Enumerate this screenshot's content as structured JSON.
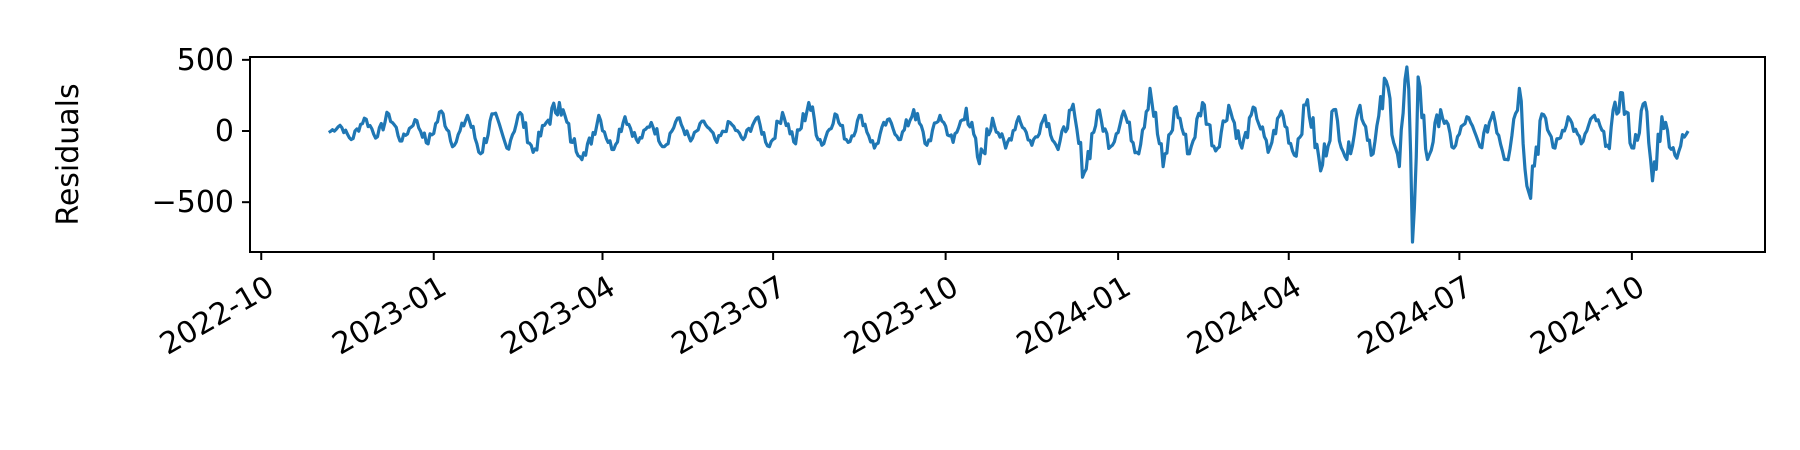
{
  "chart_data": {
    "type": "line",
    "title": "",
    "xlabel": "",
    "ylabel": "Residuals",
    "xlim": [
      "2022-09-25",
      "2024-12-11"
    ],
    "ylim": [
      -850,
      520
    ],
    "x_ticks": [
      "2022-10",
      "2023-01",
      "2023-04",
      "2023-07",
      "2023-10",
      "2024-01",
      "2024-04",
      "2024-07",
      "2024-10"
    ],
    "y_ticks": [
      500,
      0,
      -500
    ],
    "y_tick_labels": [
      "500",
      "0",
      "−500"
    ],
    "grid": false,
    "legend": "none",
    "series": [
      {
        "color": "#1f77b4",
        "x_start": "2022-11-06",
        "x_end": "2024-10-31",
        "points": [
          [
            "2022-11-06",
            -10
          ],
          [
            "2022-11-12",
            40
          ],
          [
            "2022-11-18",
            -60
          ],
          [
            "2022-11-25",
            90
          ],
          [
            "2022-12-02",
            -40
          ],
          [
            "2022-12-08",
            120
          ],
          [
            "2022-12-15",
            -70
          ],
          [
            "2022-12-22",
            80
          ],
          [
            "2022-12-29",
            -90
          ],
          [
            "2023-01-05",
            140
          ],
          [
            "2023-01-12",
            -100
          ],
          [
            "2023-01-19",
            110
          ],
          [
            "2023-01-26",
            -160
          ],
          [
            "2023-02-02",
            120
          ],
          [
            "2023-02-09",
            -120
          ],
          [
            "2023-02-16",
            130
          ],
          [
            "2023-02-23",
            -150
          ],
          [
            "2023-03-02",
            60
          ],
          [
            "2023-03-09",
            200
          ],
          [
            "2023-03-16",
            -80
          ],
          [
            "2023-03-23",
            -170
          ],
          [
            "2023-03-30",
            110
          ],
          [
            "2023-04-06",
            -130
          ],
          [
            "2023-04-13",
            100
          ],
          [
            "2023-04-20",
            -80
          ],
          [
            "2023-04-27",
            60
          ],
          [
            "2023-05-04",
            -110
          ],
          [
            "2023-05-11",
            90
          ],
          [
            "2023-05-18",
            -70
          ],
          [
            "2023-05-25",
            70
          ],
          [
            "2023-06-01",
            -80
          ],
          [
            "2023-06-08",
            60
          ],
          [
            "2023-06-15",
            -60
          ],
          [
            "2023-06-22",
            90
          ],
          [
            "2023-06-29",
            -110
          ],
          [
            "2023-07-06",
            130
          ],
          [
            "2023-07-13",
            -90
          ],
          [
            "2023-07-20",
            200
          ],
          [
            "2023-07-27",
            -100
          ],
          [
            "2023-08-03",
            120
          ],
          [
            "2023-08-10",
            -80
          ],
          [
            "2023-08-17",
            110
          ],
          [
            "2023-08-24",
            -120
          ],
          [
            "2023-08-31",
            80
          ],
          [
            "2023-09-07",
            -60
          ],
          [
            "2023-09-14",
            150
          ],
          [
            "2023-09-21",
            -100
          ],
          [
            "2023-09-28",
            110
          ],
          [
            "2023-10-05",
            -80
          ],
          [
            "2023-10-12",
            160
          ],
          [
            "2023-10-19",
            -230
          ],
          [
            "2023-10-26",
            90
          ],
          [
            "2023-11-02",
            -120
          ],
          [
            "2023-11-09",
            100
          ],
          [
            "2023-11-16",
            -100
          ],
          [
            "2023-11-23",
            110
          ],
          [
            "2023-11-30",
            -130
          ],
          [
            "2023-12-07",
            150
          ],
          [
            "2023-12-14",
            -290
          ],
          [
            "2023-12-21",
            140
          ],
          [
            "2023-12-28",
            -110
          ],
          [
            "2024-01-04",
            140
          ],
          [
            "2024-01-11",
            -150
          ],
          [
            "2024-01-18",
            300
          ],
          [
            "2024-01-25",
            -250
          ],
          [
            "2024-02-01",
            170
          ],
          [
            "2024-02-08",
            -160
          ],
          [
            "2024-02-15",
            200
          ],
          [
            "2024-02-22",
            -140
          ],
          [
            "2024-02-29",
            180
          ],
          [
            "2024-03-07",
            -120
          ],
          [
            "2024-03-14",
            160
          ],
          [
            "2024-03-21",
            -150
          ],
          [
            "2024-03-28",
            140
          ],
          [
            "2024-04-04",
            -170
          ],
          [
            "2024-04-11",
            220
          ],
          [
            "2024-04-18",
            -280
          ],
          [
            "2024-04-25",
            150
          ],
          [
            "2024-05-02",
            -200
          ],
          [
            "2024-05-09",
            180
          ],
          [
            "2024-05-16",
            -160
          ],
          [
            "2024-05-23",
            350
          ],
          [
            "2024-05-30",
            -250
          ],
          [
            "2024-06-03",
            450
          ],
          [
            "2024-06-06",
            -780
          ],
          [
            "2024-06-09",
            380
          ],
          [
            "2024-06-14",
            -200
          ],
          [
            "2024-06-21",
            150
          ],
          [
            "2024-06-28",
            -120
          ],
          [
            "2024-07-05",
            100
          ],
          [
            "2024-07-12",
            -110
          ],
          [
            "2024-07-19",
            130
          ],
          [
            "2024-07-26",
            -200
          ],
          [
            "2024-08-02",
            300
          ],
          [
            "2024-08-07",
            -430
          ],
          [
            "2024-08-14",
            120
          ],
          [
            "2024-08-21",
            -120
          ],
          [
            "2024-08-28",
            100
          ],
          [
            "2024-09-04",
            -90
          ],
          [
            "2024-09-11",
            110
          ],
          [
            "2024-09-18",
            -100
          ],
          [
            "2024-09-25",
            270
          ],
          [
            "2024-10-02",
            -120
          ],
          [
            "2024-10-08",
            200
          ],
          [
            "2024-10-12",
            -350
          ],
          [
            "2024-10-17",
            100
          ],
          [
            "2024-10-24",
            -170
          ],
          [
            "2024-10-31",
            0
          ]
        ]
      }
    ]
  }
}
